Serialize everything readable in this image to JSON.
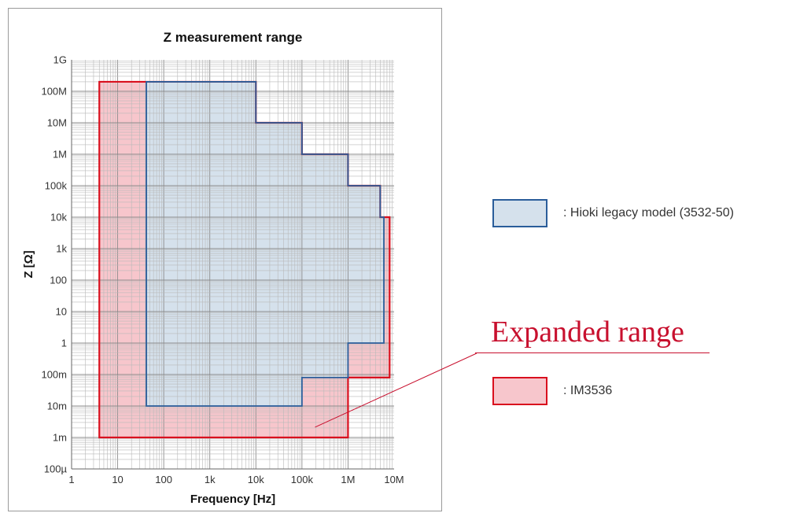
{
  "chart_data": {
    "type": "area",
    "title": "Z measurement range",
    "xlabel": "Frequency [Hz]",
    "ylabel": "Z [Ω]",
    "x_scale": "log",
    "y_scale": "log",
    "xlim": [
      1,
      10000000
    ],
    "ylim": [
      0.0001,
      1000000000
    ],
    "grid": true,
    "x_tick_values": [
      1,
      10,
      100,
      1000,
      10000,
      100000,
      1000000,
      10000000
    ],
    "x_tick_labels": [
      "1",
      "10",
      "100",
      "1k",
      "10k",
      "100k",
      "1M",
      "10M"
    ],
    "y_tick_values": [
      0.0001,
      0.001,
      0.01,
      0.1,
      1,
      10,
      100,
      1000,
      10000,
      100000,
      1000000,
      10000000,
      100000000,
      1000000000
    ],
    "y_tick_labels": [
      "100µ",
      "1m",
      "10m",
      "100m",
      "1",
      "10",
      "100",
      "1k",
      "10k",
      "100k",
      "1M",
      "10M",
      "100M",
      "1G"
    ],
    "series": [
      {
        "name": ": IM3536",
        "fill": "#f7c6cc",
        "stroke": "#d9101e",
        "outline": [
          [
            4,
            0.001
          ],
          [
            1000000,
            0.001
          ],
          [
            1000000,
            0.08
          ],
          [
            8000000,
            0.08
          ],
          [
            8000000,
            10000
          ],
          [
            5000000,
            10000
          ],
          [
            5000000,
            100000
          ],
          [
            1000000,
            100000
          ],
          [
            1000000,
            1000000
          ],
          [
            100000,
            1000000
          ],
          [
            100000,
            10000000
          ],
          [
            10000,
            10000000
          ],
          [
            10000,
            200000000
          ],
          [
            4,
            200000000
          ]
        ]
      },
      {
        "name": ": Hioki legacy model (3532-50)",
        "fill": "#d5e1ec",
        "stroke": "#2a5d9a",
        "outline": [
          [
            42,
            0.01
          ],
          [
            100000,
            0.01
          ],
          [
            100000,
            0.08
          ],
          [
            1000000,
            0.08
          ],
          [
            1000000,
            1
          ],
          [
            6000000,
            1
          ],
          [
            6000000,
            10000
          ],
          [
            5000000,
            10000
          ],
          [
            5000000,
            100000
          ],
          [
            1000000,
            100000
          ],
          [
            1000000,
            1000000
          ],
          [
            100000,
            1000000
          ],
          [
            100000,
            10000000
          ],
          [
            10000,
            10000000
          ],
          [
            10000,
            200000000
          ],
          [
            42,
            200000000
          ]
        ]
      }
    ],
    "annotation": {
      "text": "Expanded range",
      "color": "#c8102e",
      "points_to": [
        200000,
        0.002
      ]
    }
  },
  "legend": {
    "placement": "right",
    "items": [
      {
        "label": ": Hioki legacy model (3532-50)",
        "fill": "#d5e1ec",
        "stroke": "#2a5d9a"
      },
      {
        "label": ": IM3536",
        "fill": "#f7c6cc",
        "stroke": "#d9101e"
      }
    ]
  }
}
